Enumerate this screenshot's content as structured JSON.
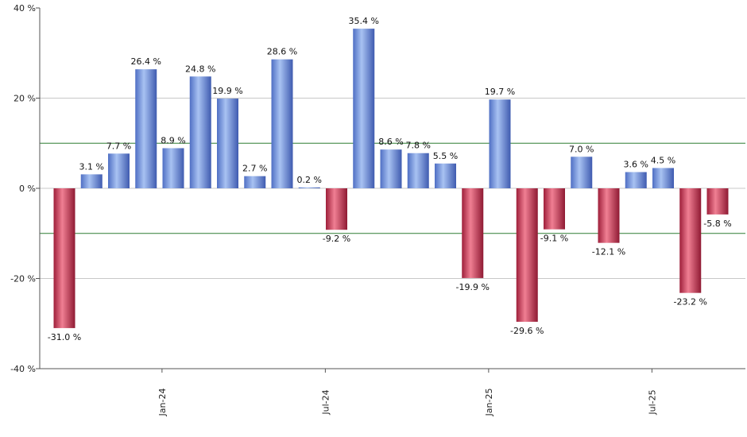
{
  "chart_data": {
    "type": "bar",
    "title": "",
    "xlabel": "",
    "ylabel": "",
    "ylim": [
      -40,
      40
    ],
    "y_ticks": [
      40,
      20,
      0,
      -20,
      -40
    ],
    "y_tick_labels": [
      "40 %",
      "20 %",
      "0 %",
      "-20 %",
      "-40 %"
    ],
    "x_tick_labels": [
      {
        "label": "Jan-24",
        "index": 4
      },
      {
        "label": "Jul-24",
        "index": 10
      },
      {
        "label": "Jan-25",
        "index": 16
      },
      {
        "label": "Jul-25",
        "index": 22
      }
    ],
    "reference_lines": [
      10,
      -10
    ],
    "values": [
      -31.0,
      3.1,
      7.7,
      26.4,
      8.9,
      24.8,
      19.9,
      2.7,
      28.6,
      0.2,
      -9.2,
      35.4,
      8.6,
      7.8,
      5.5,
      -19.9,
      19.7,
      -29.6,
      -9.1,
      7.0,
      -12.1,
      3.6,
      4.5,
      -23.2,
      -5.8
    ],
    "value_labels": [
      "-31.0 %",
      "3.1 %",
      "7.7 %",
      "26.4 %",
      "8.9 %",
      "24.8 %",
      "19.9 %",
      "2.7 %",
      "28.6 %",
      "0.2 %",
      "-9.2 %",
      "35.4 %",
      "8.6 %",
      "7.8 %",
      "5.5 %",
      "-19.9 %",
      "19.7 %",
      "-29.6 %",
      "-9.1 %",
      "7.0 %",
      "-12.1 %",
      "3.6 %",
      "4.5 %",
      "-23.2 %",
      "-5.8 %"
    ],
    "grid": true,
    "colors": {
      "positive": "#7d9fe0",
      "negative": "#d24560",
      "reference_line": "#2e7d32",
      "grid": "#c8c8c8",
      "axis": "#555555"
    }
  }
}
